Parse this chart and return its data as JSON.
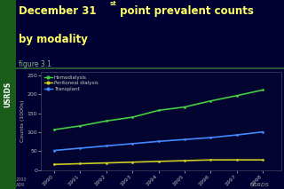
{
  "title_line1": "December 31",
  "title_superscript": "st",
  "title_rest": " point prevalent counts",
  "title_line2": "by modality",
  "subtitle": "figure 3.1",
  "years": [
    1990,
    1991,
    1992,
    1993,
    1994,
    1995,
    1996,
    1997,
    1998
  ],
  "hemodialysis": [
    107,
    117,
    130,
    140,
    158,
    167,
    183,
    197,
    212
  ],
  "peritoneal": [
    15,
    17,
    19,
    21,
    23,
    25,
    27,
    27,
    27
  ],
  "transplant": [
    52,
    58,
    64,
    70,
    76,
    81,
    86,
    93,
    101
  ],
  "hemo_color": "#44cc44",
  "perit_color": "#cccc22",
  "trans_color": "#4488ff",
  "bg_color": "#000033",
  "plot_bg_color": "#040430",
  "title_color": "#ffff66",
  "subtitle_color": "#88bb88",
  "axis_label_color": "#bbbbbb",
  "tick_color": "#bbbbbb",
  "legend_text_color": "#cccccc",
  "sidebar_bg": "#1a5c1a",
  "sidebar_text": "USRDS",
  "ylim": [
    0,
    260
  ],
  "yticks": [
    0,
    50,
    100,
    150,
    200,
    250
  ],
  "ylabel": "Counts (1000s)",
  "bottom_left_text": "2000\nADR",
  "bottom_right_text": "USRDS",
  "legend_labels": [
    "Hemodialysis",
    "Peritoneal dialysis",
    "Transplant"
  ],
  "separator_color": "#336633"
}
